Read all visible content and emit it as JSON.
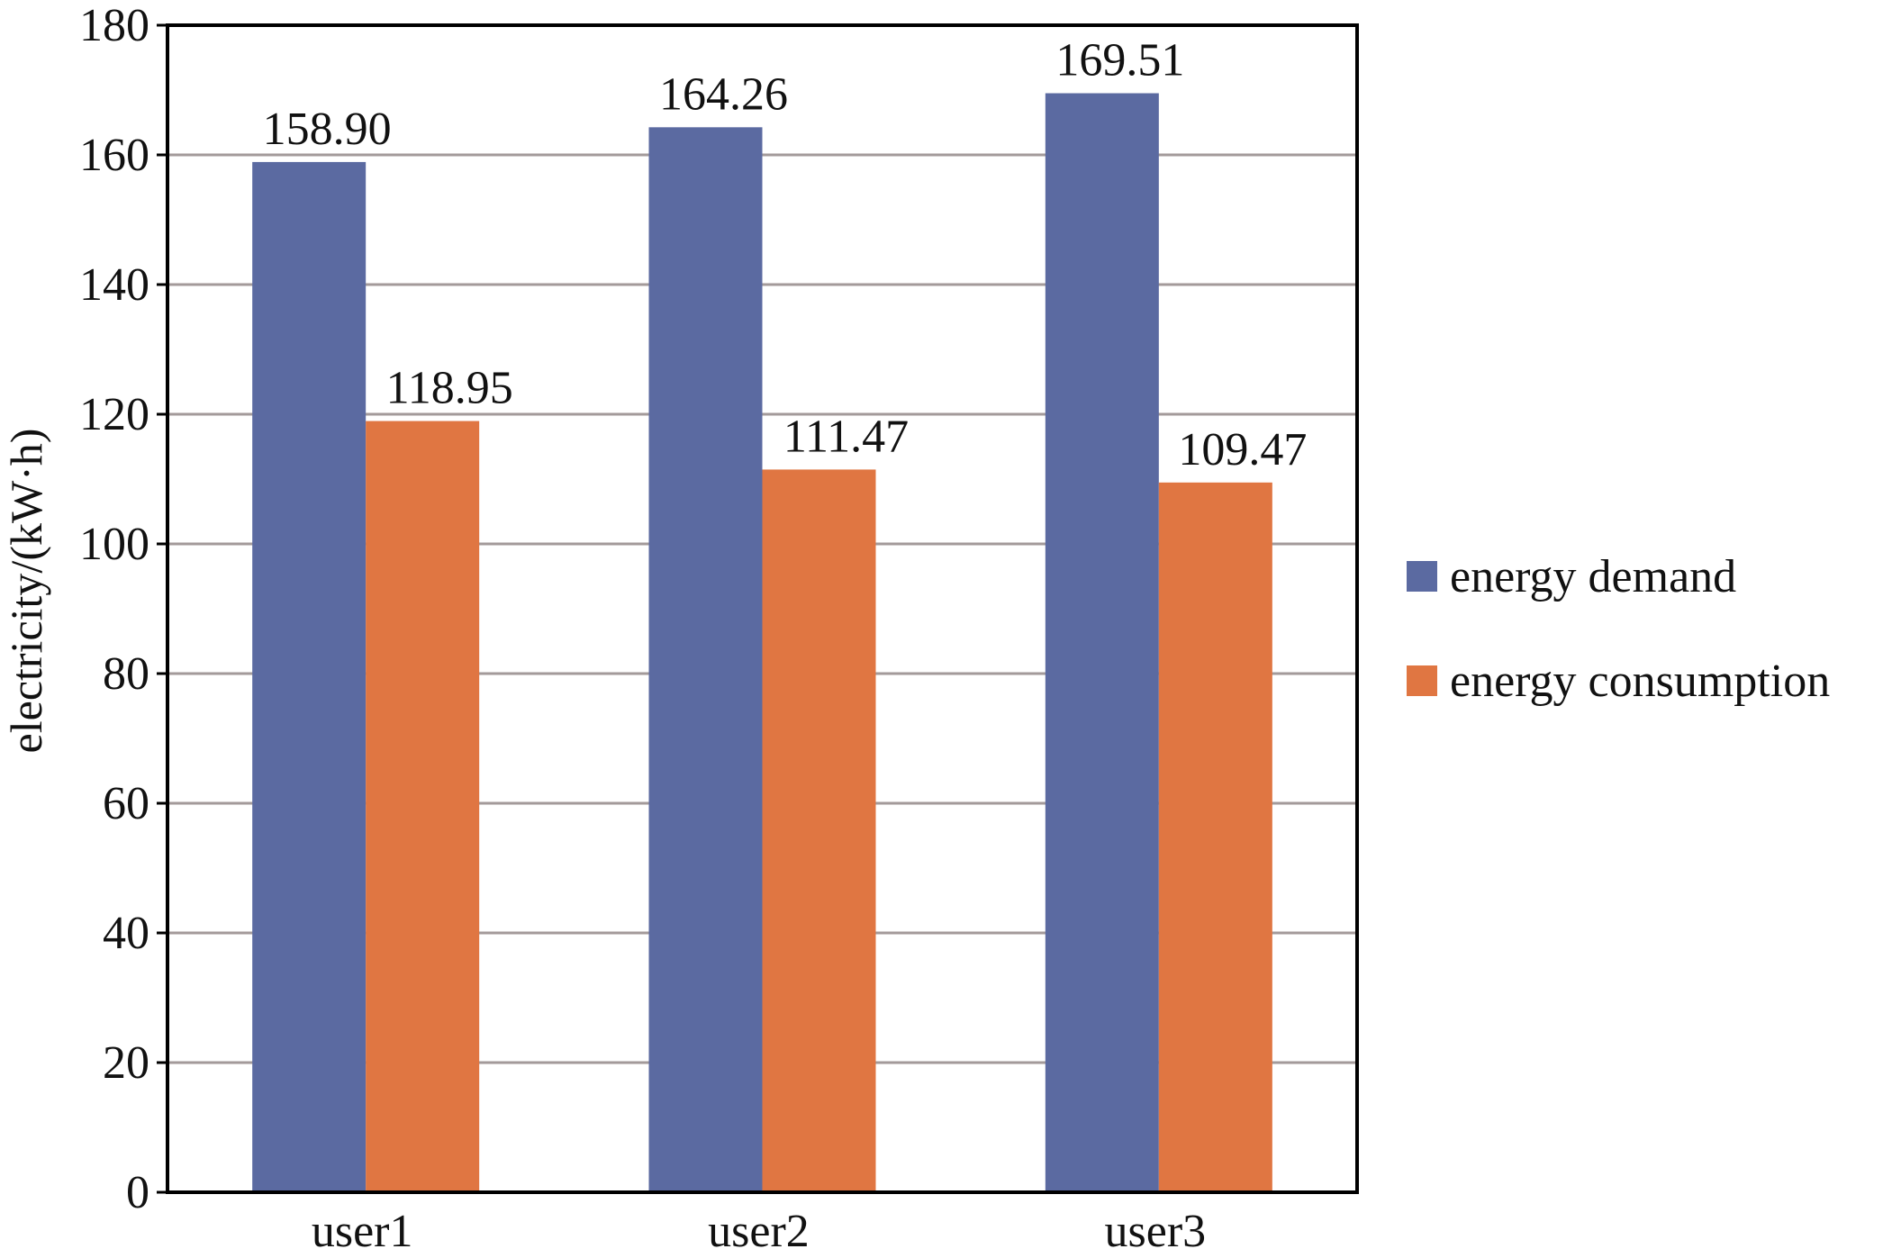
{
  "chart_data": {
    "type": "bar",
    "title": "",
    "xlabel": "",
    "ylabel": "electricity/(kW·h)",
    "ylim": [
      0,
      180
    ],
    "yticks": [
      0,
      20,
      40,
      60,
      80,
      100,
      120,
      140,
      160,
      180
    ],
    "grid": true,
    "legend_position": "right",
    "categories": [
      "user1",
      "user2",
      "user3"
    ],
    "series": [
      {
        "name": "energy demand",
        "color": "#5b6aa1",
        "values": [
          158.9,
          164.26,
          169.51
        ],
        "labels": [
          "158.90",
          "164.26",
          "169.51"
        ]
      },
      {
        "name": "energy consumption",
        "color": "#e07642",
        "values": [
          118.95,
          111.47,
          109.47
        ],
        "labels": [
          "118.95",
          "111.47",
          "109.47"
        ]
      }
    ]
  }
}
